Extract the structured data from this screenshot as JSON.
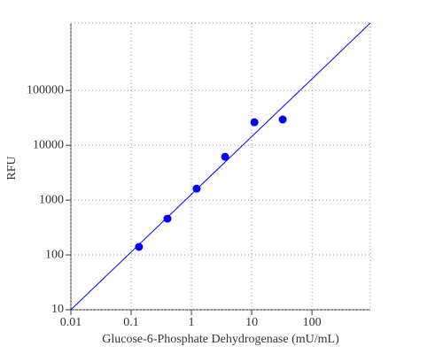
{
  "chart_data": {
    "type": "scatter",
    "x_label": "Glucose-6-Phosphate Dehydrogenase (mU/mL)",
    "y_label": "RFU",
    "x": [
      0.135,
      0.4,
      1.22,
      3.62,
      11.1,
      32.7
    ],
    "values": [
      140,
      458,
      1620,
      6170,
      26300,
      29500
    ],
    "color": "#0000ff",
    "fit": {
      "x": [
        0.01,
        930
      ],
      "y": [
        10,
        1700000
      ],
      "color": "#0000ff"
    },
    "xlim": [
      0.01,
      930
    ],
    "ylim": [
      10,
      1700000
    ],
    "xticks": [
      0.01,
      0.1,
      1,
      10,
      100
    ],
    "yticks": [
      10,
      100,
      1000,
      10000,
      100000
    ],
    "xlog": true,
    "ylog": true,
    "grid": true
  }
}
